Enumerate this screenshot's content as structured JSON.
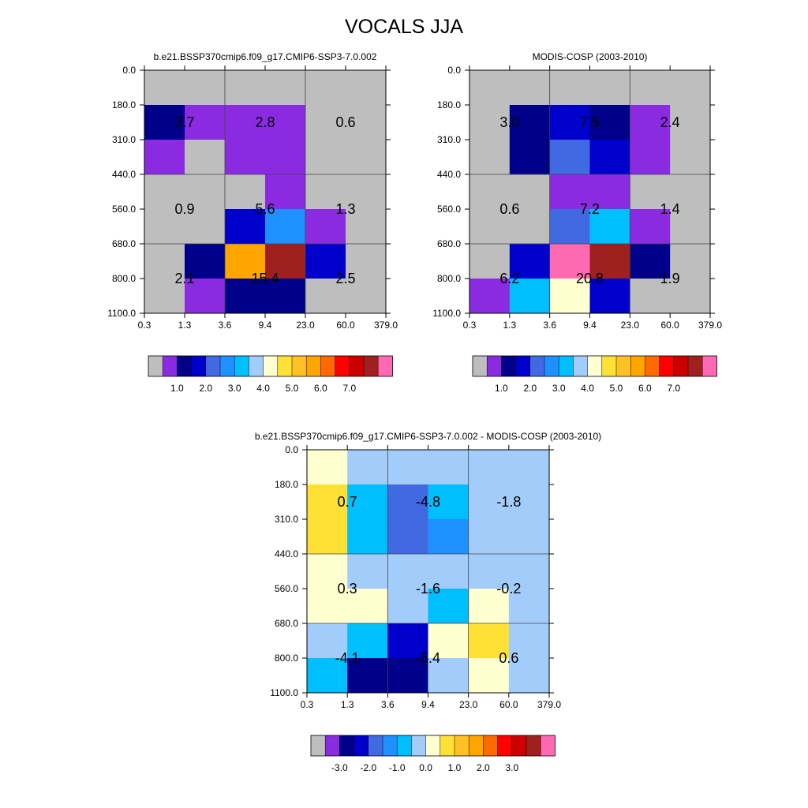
{
  "page": {
    "title": "VOCALS JJA"
  },
  "colors": {
    "model_obs_palette": [
      "#BEBEBE",
      "#8A2BE2",
      "#00008B",
      "#0000CD",
      "#4169E1",
      "#1E90FF",
      "#00BFFF",
      "#A2CDFA",
      "#FFFFD0",
      "#FFE135",
      "#FFC125",
      "#FFA500",
      "#FF6A00",
      "#FF0000",
      "#CD0000",
      "#A02020",
      "#FF69B4"
    ],
    "diff_palette": [
      "#BEBEBE",
      "#8A2BE2",
      "#00008B",
      "#0000CD",
      "#4169E1",
      "#1E90FF",
      "#00BFFF",
      "#A2CDFA",
      "#FFFFD0",
      "#FFE135",
      "#FFC125",
      "#FFA500",
      "#FF6A00",
      "#FF0000",
      "#CD0000",
      "#A02020",
      "#FF69B4"
    ]
  },
  "chart_data": [
    {
      "type": "heatmap",
      "title": "b.e21.BSSP370cmip6.f09_g17.CMIP6-SSP3-7.0.002",
      "x_ticks": [
        "0.3",
        "1.3",
        "3.6",
        "9.4",
        "23.0",
        "60.0",
        "379.0"
      ],
      "y_ticks": [
        "0.0",
        "180.0",
        "310.0",
        "440.0",
        "560.0",
        "680.0",
        "800.0",
        "1100.0"
      ],
      "grid": true,
      "cells": [
        [
          0,
          0,
          0,
          0,
          0,
          0
        ],
        [
          2,
          1,
          1,
          1,
          0,
          0
        ],
        [
          1,
          0,
          1,
          1,
          0,
          0
        ],
        [
          0,
          0,
          0,
          1,
          0,
          0
        ],
        [
          0,
          0,
          3,
          5,
          1,
          0
        ],
        [
          0,
          2,
          11,
          15,
          3,
          0
        ],
        [
          0,
          1,
          2,
          2,
          0,
          0
        ]
      ],
      "box_values": [
        [
          "3.7",
          "2.8",
          "0.6"
        ],
        [
          "0.9",
          "5.6",
          "1.3"
        ],
        [
          "2.1",
          "15.4",
          "2.5"
        ]
      ],
      "colorbar_labels": [
        "1.0",
        "2.0",
        "3.0",
        "4.0",
        "5.0",
        "6.0",
        "7.0"
      ]
    },
    {
      "type": "heatmap",
      "title": "MODIS-COSP (2003-2010)",
      "x_ticks": [
        "0.3",
        "1.3",
        "3.6",
        "9.4",
        "23.0",
        "60.0",
        "379.0"
      ],
      "y_ticks": [
        "0.0",
        "180.0",
        "310.0",
        "440.0",
        "560.0",
        "680.0",
        "800.0",
        "1100.0"
      ],
      "grid": true,
      "cells": [
        [
          0,
          0,
          0,
          0,
          0,
          0
        ],
        [
          0,
          2,
          3,
          2,
          1,
          0
        ],
        [
          0,
          2,
          4,
          3,
          1,
          0
        ],
        [
          0,
          0,
          1,
          1,
          0,
          0
        ],
        [
          0,
          0,
          4,
          6,
          1,
          0
        ],
        [
          0,
          3,
          16,
          15,
          2,
          0
        ],
        [
          1,
          6,
          8,
          3,
          0,
          0
        ]
      ],
      "box_values": [
        [
          "3.0",
          "7.5",
          "2.4"
        ],
        [
          "0.6",
          "7.2",
          "1.4"
        ],
        [
          "6.2",
          "20.8",
          "1.9"
        ]
      ],
      "colorbar_labels": [
        "1.0",
        "2.0",
        "3.0",
        "4.0",
        "5.0",
        "6.0",
        "7.0"
      ]
    },
    {
      "type": "heatmap",
      "title": "b.e21.BSSP370cmip6.f09_g17.CMIP6-SSP3-7.0.002 - MODIS-COSP (2003-2010)",
      "x_ticks": [
        "0.3",
        "1.3",
        "3.6",
        "9.4",
        "23.0",
        "60.0",
        "379.0"
      ],
      "y_ticks": [
        "0.0",
        "180.0",
        "310.0",
        "440.0",
        "560.0",
        "680.0",
        "800.0",
        "1100.0"
      ],
      "grid": true,
      "cells": [
        [
          8,
          7,
          7,
          7,
          7,
          7
        ],
        [
          9,
          6,
          4,
          6,
          7,
          7
        ],
        [
          9,
          6,
          4,
          5,
          7,
          7
        ],
        [
          8,
          7,
          7,
          7,
          7,
          7
        ],
        [
          8,
          8,
          7,
          6,
          8,
          7
        ],
        [
          7,
          6,
          3,
          8,
          9,
          7
        ],
        [
          6,
          2,
          2,
          7,
          8,
          7
        ]
      ],
      "box_values": [
        [
          "0.7",
          "-4.8",
          "-1.8"
        ],
        [
          "0.3",
          "-1.6",
          "-0.2"
        ],
        [
          "-4.1",
          "-5.4",
          "0.6"
        ]
      ],
      "colorbar_labels": [
        "-3.0",
        "-2.0",
        "-1.0",
        "0.0",
        "1.0",
        "2.0",
        "3.0"
      ]
    }
  ]
}
